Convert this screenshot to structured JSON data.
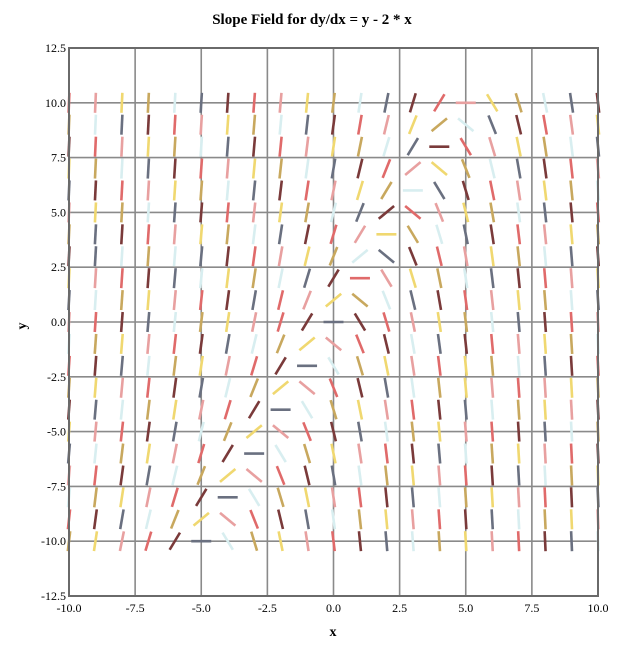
{
  "chart_data": {
    "type": "slope-field",
    "title": "Slope Field for dy/dx = y - 2 * x",
    "xlabel": "x",
    "ylabel": "y",
    "equation": "dy/dx = y - 2 * x",
    "xlim": [
      -10,
      10
    ],
    "ylim": [
      -12.5,
      12.5
    ],
    "x_ticks": [
      -10,
      -7.5,
      -5,
      -2.5,
      0,
      2.5,
      5,
      7.5,
      10
    ],
    "y_ticks": [
      -12.5,
      -10,
      -7.5,
      -5,
      -2.5,
      0,
      2.5,
      5,
      7.5,
      10,
      12.5
    ],
    "x_tick_labels": [
      "-10.0",
      "-7.5",
      "-5.0",
      "-2.5",
      "0.0",
      "2.5",
      "5.0",
      "7.5",
      "10.0"
    ],
    "y_tick_labels": [
      "-12.5",
      "-10.0",
      "-7.5",
      "-5.0",
      "-2.5",
      "0.0",
      "2.5",
      "5.0",
      "7.5",
      "10.0",
      "12.5"
    ],
    "sample_x": {
      "start": -10,
      "end": 10,
      "step": 1
    },
    "sample_y": {
      "start": -10,
      "end": 10,
      "step": 1
    },
    "grid": true,
    "segment_colors": [
      "#e06a6a",
      "#8fe08f",
      "#c8a85e",
      "#a7c8e8",
      "#7a3a3a",
      "#6a8a5a",
      "#f0d870",
      "#c878f0",
      "#6a7080",
      "#8a50d0",
      "#e8a0a0",
      "#3a6a3a",
      "#d8eef0",
      "#4a2a2a"
    ],
    "grid_color": "#8a8a8a"
  }
}
